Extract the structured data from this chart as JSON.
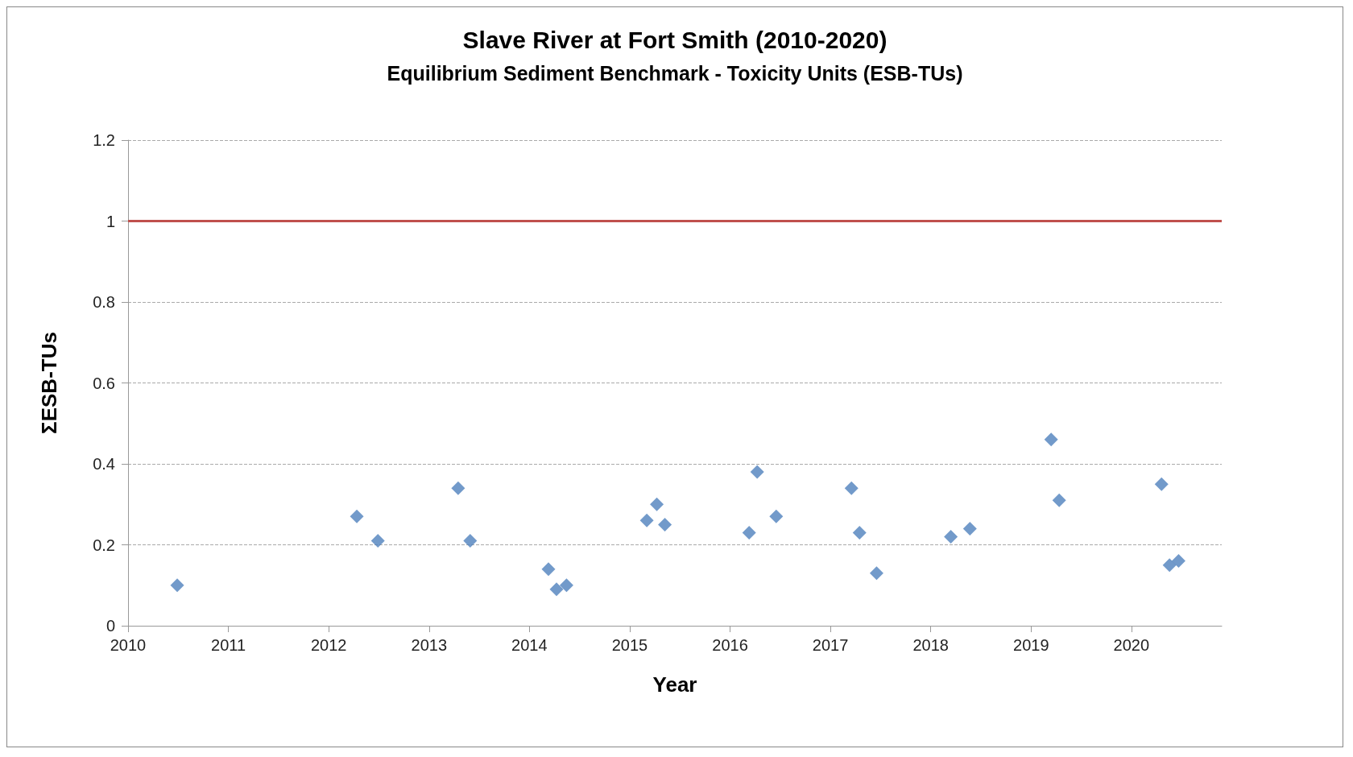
{
  "chart_data": {
    "type": "scatter",
    "title": "Slave River at Fort Smith (2010-2020)",
    "subtitle": "Equilibrium Sediment Benchmark - Toxicity Units (ESB-TUs)",
    "xlabel": "Year",
    "ylabel": "ΣESB-TUs",
    "x": [
      2010.49,
      2012.28,
      2012.49,
      2013.29,
      2013.41,
      2014.19,
      2014.27,
      2014.37,
      2015.17,
      2015.27,
      2015.35,
      2016.19,
      2016.27,
      2016.46,
      2017.21,
      2017.29,
      2017.46,
      2018.2,
      2018.39,
      2019.2,
      2019.28,
      2020.3,
      2020.38,
      2020.47
    ],
    "values": [
      0.1,
      0.27,
      0.21,
      0.34,
      0.21,
      0.14,
      0.09,
      0.1,
      0.26,
      0.3,
      0.25,
      0.23,
      0.38,
      0.27,
      0.34,
      0.23,
      0.13,
      0.22,
      0.24,
      0.46,
      0.31,
      0.35,
      0.15,
      0.16
    ],
    "color": "#4f81bd",
    "marker": "diamond",
    "xlim": [
      2010,
      2020.9
    ],
    "xticks": [
      2010,
      2011,
      2012,
      2013,
      2014,
      2015,
      2016,
      2017,
      2018,
      2019,
      2020
    ],
    "ylim": [
      0,
      1.2
    ],
    "yticks": [
      0,
      0.2,
      0.4,
      0.6,
      0.8,
      1,
      1.2
    ],
    "grid": "y",
    "ref_lines": [
      {
        "axis": "y",
        "value": 1,
        "color": "#c0504d",
        "line_style": "solid"
      }
    ]
  }
}
